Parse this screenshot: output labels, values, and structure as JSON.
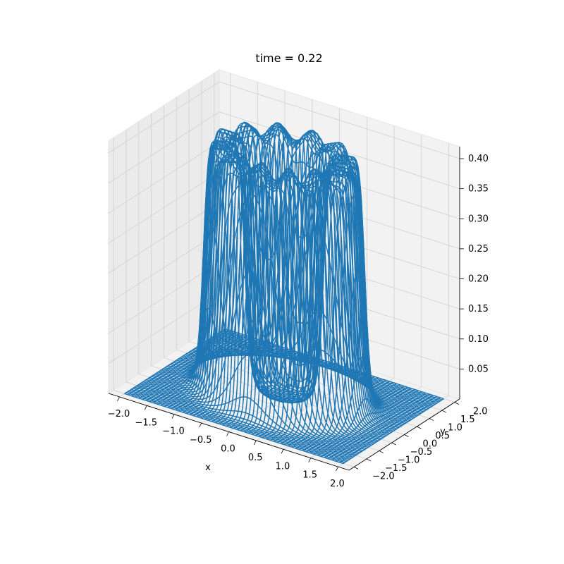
{
  "chart_data": {
    "type": "surface-wireframe",
    "title": "time = 0.22",
    "xlabel": "x",
    "ylabel": "y",
    "zlabel": "",
    "xlim": [
      -2.2,
      2.2
    ],
    "ylim": [
      -2.2,
      2.2
    ],
    "zlim": [
      0.0,
      0.42
    ],
    "x_ticks": [
      -2.0,
      -1.5,
      -1.0,
      -0.5,
      0.0,
      0.5,
      1.0,
      1.5,
      2.0
    ],
    "y_ticks": [
      -2.0,
      -1.5,
      -1.0,
      -0.5,
      0.0,
      0.5,
      1.0,
      1.5,
      2.0
    ],
    "z_ticks": [
      0.05,
      0.1,
      0.15,
      0.2,
      0.25,
      0.3,
      0.35,
      0.4
    ],
    "x_tick_labels": [
      "−2.0",
      "−1.5",
      "−1.0",
      "−0.5",
      "0.0",
      "0.5",
      "1.0",
      "1.5",
      "2.0"
    ],
    "y_tick_labels": [
      "−2.0",
      "−1.5",
      "−1.0",
      "−0.5",
      "0.0",
      "0.5",
      "1.0",
      "1.5",
      "2.0"
    ],
    "z_tick_labels": [
      "0.05",
      "0.10",
      "0.15",
      "0.20",
      "0.25",
      "0.30",
      "0.35",
      "0.40"
    ],
    "surface": {
      "x_range": [
        -2.0,
        2.0
      ],
      "y_range": [
        -2.0,
        2.0
      ],
      "grid_points": 61,
      "shape": "ring",
      "ring_radius": 1.0,
      "ring_width": 0.35,
      "peak": 0.4,
      "edge_sharpness": 8
    },
    "grid": true,
    "line_color": "#1f77b4",
    "pane_color": "#f2f2f2",
    "grid_color": "#d0d0d0"
  }
}
